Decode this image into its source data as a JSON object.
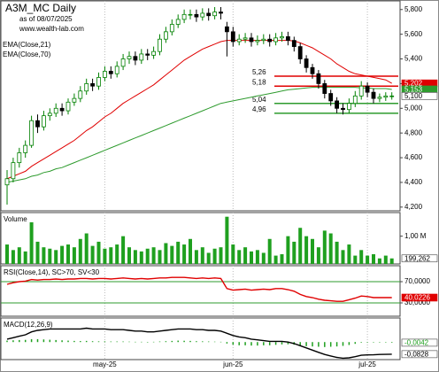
{
  "chart_data": [
    {
      "type": "candlestick",
      "title": "A3M_MC Daily",
      "subtitle": "as of 08/07/2025",
      "source": "www.wealth-lab.com",
      "categories": [
        null,
        null,
        null,
        null,
        null,
        null,
        null,
        null,
        null,
        null,
        null,
        null,
        null,
        null,
        null,
        null,
        "may-25",
        null,
        null,
        null,
        null,
        null,
        null,
        null,
        null,
        null,
        null,
        null,
        null,
        null,
        null,
        null,
        null,
        null,
        null,
        null,
        null,
        "jun-25",
        null,
        null,
        null,
        null,
        null,
        null,
        null,
        null,
        null,
        null,
        null,
        null,
        null,
        null,
        null,
        null,
        null,
        null,
        null,
        null,
        null,
        "jul-25",
        null,
        null,
        null,
        null
      ],
      "open": [
        4.38,
        4.43,
        4.56,
        4.64,
        4.7,
        4.9,
        4.85,
        4.94,
        4.96,
        5.0,
        4.98,
        5.05,
        5.08,
        5.14,
        5.2,
        5.18,
        5.25,
        5.3,
        5.28,
        5.34,
        5.4,
        5.42,
        5.39,
        5.44,
        5.43,
        5.46,
        5.56,
        5.62,
        5.68,
        5.72,
        5.76,
        5.76,
        5.74,
        5.77,
        5.75,
        5.78,
        5.66,
        5.62,
        5.54,
        5.56,
        5.57,
        5.54,
        5.55,
        5.56,
        5.54,
        5.57,
        5.58,
        5.55,
        5.5,
        5.4,
        5.33,
        5.28,
        5.2,
        5.12,
        5.06,
        5.0,
        4.99,
        5.04,
        5.1,
        5.18,
        5.13,
        5.08,
        5.09,
        5.1
      ],
      "high": [
        4.5,
        4.6,
        4.68,
        4.74,
        4.94,
        4.95,
        4.98,
        5.0,
        5.04,
        5.04,
        5.08,
        5.12,
        5.18,
        5.24,
        5.24,
        5.29,
        5.34,
        5.34,
        5.38,
        5.44,
        5.46,
        5.46,
        5.48,
        5.48,
        5.5,
        5.6,
        5.66,
        5.72,
        5.76,
        5.8,
        5.8,
        5.8,
        5.81,
        5.81,
        5.82,
        5.82,
        5.7,
        5.66,
        5.6,
        5.61,
        5.61,
        5.59,
        5.6,
        5.6,
        5.61,
        5.62,
        5.62,
        5.58,
        5.53,
        5.43,
        5.36,
        5.31,
        5.23,
        5.15,
        5.09,
        5.04,
        5.08,
        5.14,
        5.22,
        5.21,
        5.16,
        5.12,
        5.13,
        5.13
      ],
      "low": [
        4.22,
        4.4,
        4.52,
        4.6,
        4.68,
        4.8,
        4.82,
        4.9,
        4.93,
        4.94,
        4.95,
        5.02,
        5.05,
        5.11,
        5.14,
        5.15,
        5.22,
        5.24,
        5.25,
        5.31,
        5.36,
        5.35,
        5.36,
        5.39,
        5.4,
        5.43,
        5.53,
        5.59,
        5.65,
        5.69,
        5.72,
        5.7,
        5.71,
        5.71,
        5.72,
        5.72,
        5.42,
        5.5,
        5.51,
        5.53,
        5.5,
        5.51,
        5.52,
        5.5,
        5.51,
        5.54,
        5.51,
        5.46,
        5.36,
        5.29,
        5.24,
        5.16,
        5.08,
        5.02,
        4.96,
        4.95,
        4.96,
        5.01,
        5.07,
        5.09,
        5.04,
        5.05,
        5.06,
        5.07
      ],
      "close": [
        4.43,
        4.56,
        4.64,
        4.7,
        4.9,
        4.85,
        4.94,
        4.96,
        5.0,
        4.98,
        5.05,
        5.08,
        5.14,
        5.2,
        5.18,
        5.25,
        5.3,
        5.28,
        5.34,
        5.4,
        5.42,
        5.39,
        5.44,
        5.43,
        5.46,
        5.56,
        5.62,
        5.68,
        5.72,
        5.76,
        5.76,
        5.74,
        5.77,
        5.75,
        5.78,
        5.77,
        5.62,
        5.54,
        5.56,
        5.57,
        5.54,
        5.55,
        5.56,
        5.54,
        5.57,
        5.58,
        5.55,
        5.5,
        5.4,
        5.33,
        5.28,
        5.2,
        5.12,
        5.06,
        5.0,
        4.99,
        5.04,
        5.1,
        5.18,
        5.13,
        5.08,
        5.09,
        5.1,
        5.1
      ],
      "up_color": "#008000",
      "down_color": "#000000",
      "last_close_label": "5,100",
      "series": [
        {
          "name": "EMA(Close,21)",
          "color": "#e00000",
          "last_value_label": "5,202",
          "values": [
            4.43,
            4.45,
            4.47,
            4.49,
            4.53,
            4.56,
            4.59,
            4.62,
            4.65,
            4.68,
            4.71,
            4.74,
            4.78,
            4.82,
            4.85,
            4.89,
            4.93,
            4.96,
            5.0,
            5.04,
            5.07,
            5.1,
            5.13,
            5.16,
            5.19,
            5.23,
            5.27,
            5.31,
            5.35,
            5.39,
            5.42,
            5.45,
            5.48,
            5.5,
            5.52,
            5.54,
            5.55,
            5.55,
            5.55,
            5.55,
            5.55,
            5.55,
            5.55,
            5.55,
            5.55,
            5.55,
            5.55,
            5.545,
            5.53,
            5.51,
            5.49,
            5.46,
            5.43,
            5.4,
            5.36,
            5.33,
            5.3,
            5.28,
            5.27,
            5.26,
            5.25,
            5.24,
            5.23,
            5.202
          ]
        },
        {
          "name": "EMA(Close,70)",
          "color": "#2e9b2e",
          "last_value_label": "5,153",
          "values": [
            4.4,
            4.41,
            4.42,
            4.43,
            4.45,
            4.46,
            4.48,
            4.49,
            4.51,
            4.52,
            4.54,
            4.56,
            4.58,
            4.6,
            4.62,
            4.64,
            4.66,
            4.68,
            4.7,
            4.72,
            4.74,
            4.76,
            4.78,
            4.8,
            4.82,
            4.84,
            4.86,
            4.88,
            4.9,
            4.92,
            4.94,
            4.96,
            4.98,
            5.0,
            5.02,
            5.04,
            5.05,
            5.06,
            5.07,
            5.08,
            5.09,
            5.1,
            5.11,
            5.12,
            5.13,
            5.14,
            5.15,
            5.155,
            5.16,
            5.165,
            5.17,
            5.17,
            5.17,
            5.17,
            5.17,
            5.17,
            5.17,
            5.17,
            5.165,
            5.165,
            5.16,
            5.16,
            5.16,
            5.153
          ]
        }
      ],
      "levels": [
        {
          "value": 5.26,
          "label": "5,26",
          "color": "#e00000"
        },
        {
          "value": 5.18,
          "label": "5,18",
          "color": "#e00000"
        },
        {
          "value": 5.04,
          "label": "5,04",
          "color": "#2e9b2e"
        },
        {
          "value": 4.96,
          "label": "4,96",
          "color": "#2e9b2e"
        }
      ],
      "ylim": [
        4.17,
        5.87
      ],
      "yticks": [
        {
          "value": 4.2,
          "label": "4,200"
        },
        {
          "value": 4.4,
          "label": "4,400"
        },
        {
          "value": 4.6,
          "label": "4,600"
        },
        {
          "value": 4.8,
          "label": "4,800"
        },
        {
          "value": 5.0,
          "label": "5,000"
        },
        {
          "value": 5.2,
          "label": "5,200"
        },
        {
          "value": 5.4,
          "label": "5,400"
        },
        {
          "value": 5.6,
          "label": "5,600"
        },
        {
          "value": 5.8,
          "label": "5,800"
        }
      ]
    },
    {
      "type": "bar",
      "title": "Volume",
      "color": "#1fa01f",
      "last_value_label": "199,262",
      "values": [
        700000,
        500000,
        600000,
        450000,
        1500000,
        800000,
        600000,
        550000,
        500000,
        650000,
        700000,
        600000,
        900000,
        1100000,
        650000,
        800000,
        550000,
        600000,
        700000,
        1000000,
        600000,
        500000,
        450000,
        550000,
        600000,
        500000,
        750000,
        650000,
        800000,
        700000,
        900000,
        500000,
        600000,
        400000,
        550000,
        600000,
        1700000,
        700000,
        500000,
        600000,
        450000,
        500000,
        400000,
        900000,
        300000,
        350000,
        1000000,
        800000,
        1300000,
        1000000,
        900000,
        600000,
        1200000,
        1100000,
        800000,
        500000,
        700000,
        300000,
        500000,
        300000,
        350000,
        200000,
        300000,
        199262
      ],
      "ylim": [
        0,
        1850000
      ],
      "yticks": [
        {
          "value": 1000000,
          "label": "1,00 M"
        }
      ]
    },
    {
      "type": "line",
      "title": "RSI(Close,14), SC>70, SV<30",
      "grid": true,
      "grid_color": "#2e9b2e",
      "series": [
        {
          "color": "#e00000",
          "last_value_label": "40,0226",
          "values": [
            65,
            68,
            70,
            71,
            74,
            73,
            74,
            74,
            75,
            74,
            75,
            75,
            76,
            76,
            75,
            76,
            76,
            75,
            76,
            77,
            76,
            75,
            76,
            75,
            76,
            77,
            77,
            78,
            78,
            78,
            77,
            76,
            77,
            76,
            77,
            76,
            57,
            54,
            55,
            56,
            54,
            55,
            56,
            55,
            57,
            57,
            55,
            52,
            46,
            42,
            40,
            37,
            35,
            34,
            33,
            33,
            36,
            39,
            43,
            42,
            40,
            40,
            40,
            40.0226
          ]
        }
      ],
      "ylim": [
        5,
        100
      ],
      "yticks": [
        {
          "value": 70,
          "label": "70,0000"
        },
        {
          "value": 30,
          "label": "30,0000"
        }
      ]
    },
    {
      "type": "line",
      "title": "MACD(12,26,9)",
      "series": [
        {
          "color": "#1fa01f",
          "style": "bar",
          "last_value_label": "-0,0042",
          "values": [
            0.01,
            0.012,
            0.014,
            0.015,
            0.02,
            0.02,
            0.018,
            0.016,
            0.014,
            0.012,
            0.01,
            0.008,
            0.007,
            0.008,
            0.006,
            0.005,
            0.005,
            0.004,
            0.004,
            0.004,
            0.003,
            0.002,
            0.002,
            0.001,
            0.002,
            0.004,
            0.006,
            0.008,
            0.01,
            0.009,
            0.008,
            0.006,
            0.005,
            0.004,
            0.003,
            0.002,
            -0.01,
            -0.018,
            -0.022,
            -0.022,
            -0.024,
            -0.024,
            -0.022,
            -0.022,
            -0.019,
            -0.016,
            -0.015,
            -0.018,
            -0.024,
            -0.028,
            -0.03,
            -0.032,
            -0.034,
            -0.032,
            -0.03,
            -0.026,
            -0.02,
            -0.012,
            -0.004,
            0.0,
            0.001,
            0.0,
            -0.002,
            -0.0042
          ]
        },
        {
          "color": "#000000",
          "style": "line",
          "last_value_label": "-0,0828",
          "values": [
            0.02,
            0.03,
            0.04,
            0.05,
            0.07,
            0.08,
            0.085,
            0.09,
            0.09,
            0.09,
            0.09,
            0.09,
            0.09,
            0.095,
            0.09,
            0.09,
            0.09,
            0.085,
            0.085,
            0.085,
            0.08,
            0.075,
            0.075,
            0.07,
            0.07,
            0.075,
            0.08,
            0.085,
            0.09,
            0.09,
            0.09,
            0.085,
            0.085,
            0.08,
            0.08,
            0.075,
            0.06,
            0.045,
            0.035,
            0.03,
            0.02,
            0.015,
            0.01,
            0.005,
            0.005,
            0.005,
            0.0,
            -0.01,
            -0.025,
            -0.04,
            -0.055,
            -0.07,
            -0.085,
            -0.095,
            -0.105,
            -0.11,
            -0.108,
            -0.1,
            -0.09,
            -0.088,
            -0.087,
            -0.085,
            -0.084,
            -0.0828
          ]
        }
      ],
      "ylim": [
        -0.12,
        0.165
      ],
      "yticks": []
    }
  ]
}
